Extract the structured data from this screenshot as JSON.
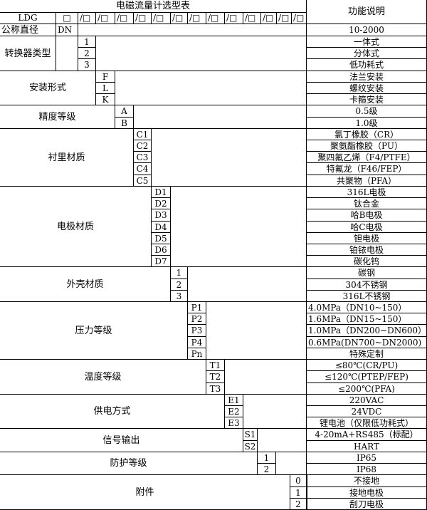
{
  "title": "电磁流量计选型表",
  "function_header": "功能说明",
  "header_row": {
    "model": "LDG",
    "first_box": "□",
    "slot": "/□",
    "slot_count": 13
  },
  "nominal": {
    "label": "公称直径",
    "code": "DN",
    "description": "10-2000"
  },
  "groups": [
    {
      "label": "转换器类型",
      "codes": [
        "1",
        "2",
        "3"
      ],
      "descriptions": [
        "一体式",
        "分体式",
        "低功耗式"
      ]
    },
    {
      "label": "安装形式",
      "codes": [
        "F",
        "L",
        "K"
      ],
      "descriptions": [
        "法兰安装",
        "螺纹安装",
        "卡箍安装"
      ]
    },
    {
      "label": "精度等级",
      "codes": [
        "A",
        "B"
      ],
      "descriptions": [
        "0.5级",
        "1.0级"
      ]
    },
    {
      "label": "衬里材质",
      "codes": [
        "C1",
        "C2",
        "C3",
        "C4",
        "C5"
      ],
      "descriptions": [
        "氯丁橡胶（CR）",
        "聚氨酯橡胶（PU）",
        "聚四氟乙烯（F4/PTFE）",
        "特氟龙（F46/FEP）",
        "共聚物（PFA）"
      ]
    },
    {
      "label": "电极材质",
      "codes": [
        "D1",
        "D2",
        "D3",
        "D4",
        "D5",
        "D6",
        "D7"
      ],
      "descriptions": [
        "316L电极",
        "钛合金",
        "哈B电极",
        "哈C电极",
        "钽电极",
        "铂铱电极",
        "碳化钨"
      ]
    },
    {
      "label": "外壳材质",
      "codes": [
        "1",
        "2",
        "3"
      ],
      "descriptions": [
        "碳钢",
        "304不锈钢",
        "316L不锈钢"
      ]
    },
    {
      "label": "压力等级",
      "codes": [
        "P1",
        "P2",
        "P3",
        "P4",
        "Pn"
      ],
      "descriptions": [
        "4.0MPa（DN10~150）",
        "1.6MPa（DN15~150）",
        "1.0MPa（DN200~DN600）",
        "0.6MPa(DN700~DN2000)",
        "特殊定制"
      ]
    },
    {
      "label": "温度等级",
      "codes": [
        "T1",
        "T2",
        "T3"
      ],
      "descriptions": [
        "≤80℃(CR/PU)",
        "≤120℃(PTEP/FEP)",
        "≤200℃(PFA)"
      ]
    },
    {
      "label": "供电方式",
      "codes": [
        "E1",
        "E2",
        "E3"
      ],
      "descriptions": [
        "220VAC",
        "24VDC",
        "锂电池（仅限低功耗式）"
      ]
    },
    {
      "label": "信号输出",
      "codes": [
        "S1",
        "S2"
      ],
      "descriptions": [
        "4-20mA+RS485（标配）",
        "HART"
      ]
    },
    {
      "label": "防护等级",
      "codes": [
        "1",
        "2"
      ],
      "descriptions": [
        "IP65",
        "IP68"
      ]
    },
    {
      "label": "附件",
      "codes": [
        "0",
        "1",
        "2"
      ],
      "descriptions": [
        "不接地",
        "接地电极",
        "刮刀电极"
      ]
    }
  ]
}
